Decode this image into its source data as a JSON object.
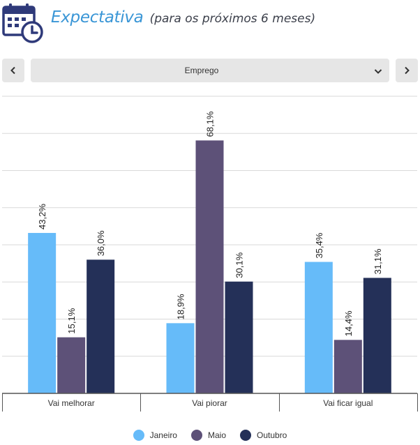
{
  "header": {
    "title": "Expectativa",
    "subtitle": "(para os próximos 6 meses)",
    "icon": "calendar-clock-icon",
    "icon_color": "#2f3a7a"
  },
  "controls": {
    "prev_icon": "chevron-left-icon",
    "next_icon": "chevron-right-icon",
    "select_value": "Emprego",
    "select_icon": "chevron-down-icon"
  },
  "chart_data": {
    "type": "bar",
    "categories": [
      "Vai melhorar",
      "Vai piorar",
      "Vai ficar igual"
    ],
    "series": [
      {
        "name": "Janeiro",
        "color": "#66bbf9",
        "values": [
          43.2,
          18.9,
          35.4
        ],
        "labels": [
          "43,2%",
          "18,9%",
          "35,4%"
        ]
      },
      {
        "name": "Maio",
        "color": "#5d5178",
        "values": [
          15.1,
          68.1,
          14.4
        ],
        "labels": [
          "15,1%",
          "68,1%",
          "14,4%"
        ]
      },
      {
        "name": "Outubro",
        "color": "#243058",
        "values": [
          36.0,
          30.1,
          31.1
        ],
        "labels": [
          "36,0%",
          "30,1%",
          "31,1%"
        ]
      }
    ],
    "ylim": [
      0,
      80
    ],
    "grid": true,
    "legend": "bottom-center",
    "title": "",
    "xlabel": "",
    "ylabel": ""
  }
}
